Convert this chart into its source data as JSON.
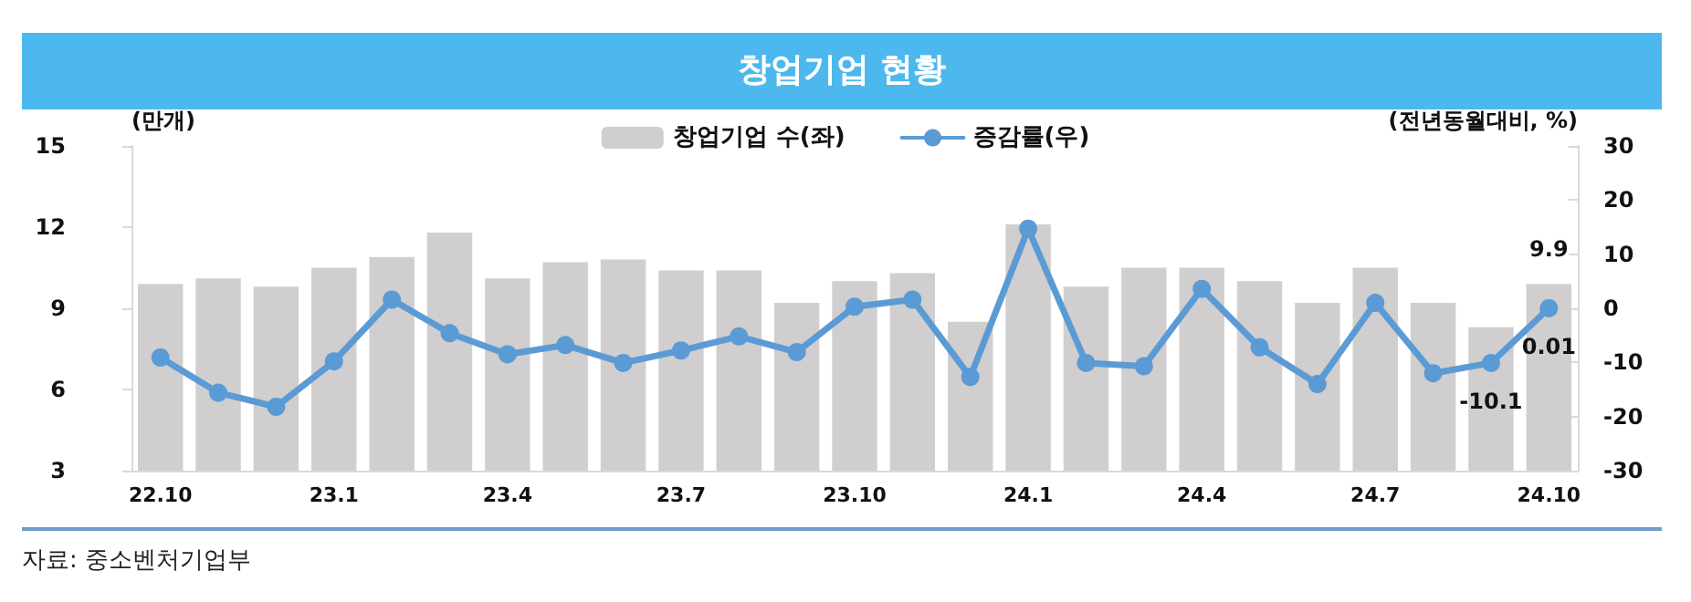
{
  "chart_data": {
    "type": "bar",
    "title": "창업기업 현황",
    "ylabel": "(만개)",
    "y2label": "(전년동월대비, %)",
    "annotations": [
      "자료: 중소벤처기업부"
    ],
    "categories": [
      "22.10",
      null,
      null,
      "23.1",
      null,
      null,
      "23.4",
      null,
      null,
      "23.7",
      null,
      null,
      "23.10",
      null,
      null,
      "24.1",
      null,
      null,
      "24.4",
      null,
      null,
      "24.7",
      null,
      null,
      "24.10"
    ],
    "series": [
      {
        "name": "창업기업 수(좌)",
        "color": "#d0cece",
        "values": [
          9.9,
          10.1,
          9.8,
          10.5,
          10.9,
          11.8,
          10.1,
          10.7,
          10.8,
          10.4,
          10.4,
          9.2,
          10.0,
          10.3,
          8.5,
          12.1,
          9.8,
          10.5,
          10.5,
          10.0,
          9.2,
          10.5,
          9.2,
          8.3,
          9.9
        ],
        "value_labels": [
          null,
          null,
          null,
          null,
          null,
          null,
          null,
          null,
          null,
          null,
          null,
          null,
          null,
          null,
          null,
          null,
          null,
          null,
          null,
          null,
          null,
          null,
          null,
          null,
          "9.9"
        ]
      },
      {
        "name": "증감률(우)",
        "type": "line",
        "axis": "y2",
        "color": "#5b9bd5",
        "marker": "circle",
        "values": [
          -9.1,
          -15.6,
          -18.2,
          -9.8,
          1.6,
          -4.6,
          -8.5,
          -6.8,
          -10.1,
          -7.8,
          -5.2,
          -8.1,
          0.3,
          1.6,
          -12.7,
          14.7,
          -10.1,
          -10.7,
          3.6,
          -7.2,
          -14.0,
          1.0,
          -12.0,
          -10.1,
          0.01
        ],
        "value_labels": [
          null,
          null,
          null,
          null,
          null,
          null,
          null,
          null,
          null,
          null,
          null,
          null,
          null,
          null,
          null,
          null,
          null,
          null,
          null,
          null,
          null,
          null,
          null,
          "-10.1",
          "0.01"
        ]
      }
    ],
    "ylim": [
      3,
      15
    ],
    "yticks": [
      3,
      6,
      9,
      12,
      15
    ],
    "y2lim": [
      -30,
      30
    ],
    "y2ticks": [
      -30,
      -20,
      -10,
      0,
      10,
      20,
      30
    ],
    "grid": false,
    "legend": "top"
  }
}
